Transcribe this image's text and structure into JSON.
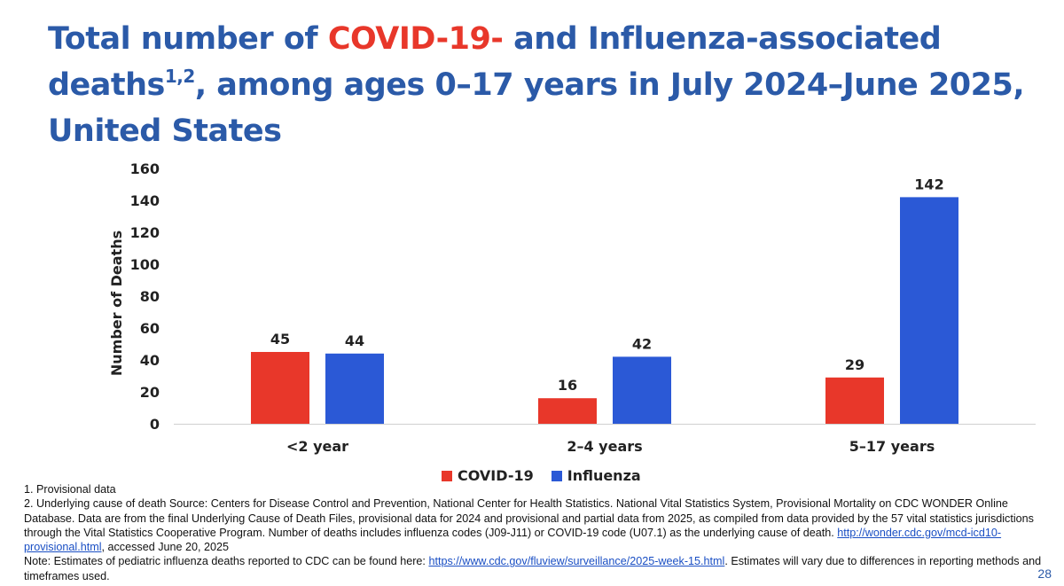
{
  "title": {
    "part1": "Total number of ",
    "covid": "COVID-19-",
    "part2": " and Influenza-associated deaths",
    "sup": "1,2",
    "part3": ", among ages 0–17 years in July 2024–June 2025, United States"
  },
  "chart_data": {
    "type": "bar",
    "categories": [
      "<2 year",
      "2–4 years",
      "5–17 years"
    ],
    "series": [
      {
        "name": "COVID-19",
        "values": [
          45,
          16,
          29
        ],
        "color": "#e8372a"
      },
      {
        "name": "Influenza",
        "values": [
          44,
          42,
          142
        ],
        "color": "#2b59d6"
      }
    ],
    "ylabel": "Number of Deaths",
    "ylim": [
      0,
      160
    ],
    "yticks": [
      0,
      20,
      40,
      60,
      80,
      100,
      120,
      140,
      160
    ],
    "grid": false,
    "legend_position": "bottom"
  },
  "footnotes": {
    "note1": "1. Provisional data",
    "note2_text": "2. Underlying cause of death Source: Centers for Disease Control and Prevention, National Center for Health Statistics. National Vital Statistics System, Provisional Mortality on CDC WONDER Online Database. Data are from the final Underlying Cause of Death Files, provisional data for 2024 and provisional and partial data from 2025, as compiled from data provided by the 57 vital statistics jurisdictions through the Vital Statistics Cooperative Program. Number of deaths includes influenza codes (J09-J11) or COVID-19 code (U07.1) as the underlying cause of death. ",
    "note2_link": "http://wonder.cdc.gov/mcd-icd10-provisional.html",
    "note2_suffix": ", accessed June 20, 2025",
    "note3_text": "Note: Estimates of pediatric influenza deaths reported to CDC can be found here: ",
    "note3_link": "https://www.cdc.gov/fluview/surveillance/2025-week-15.html",
    "note3_suffix": ". Estimates will vary due to differences in reporting methods and timeframes used."
  },
  "page_number": "28"
}
